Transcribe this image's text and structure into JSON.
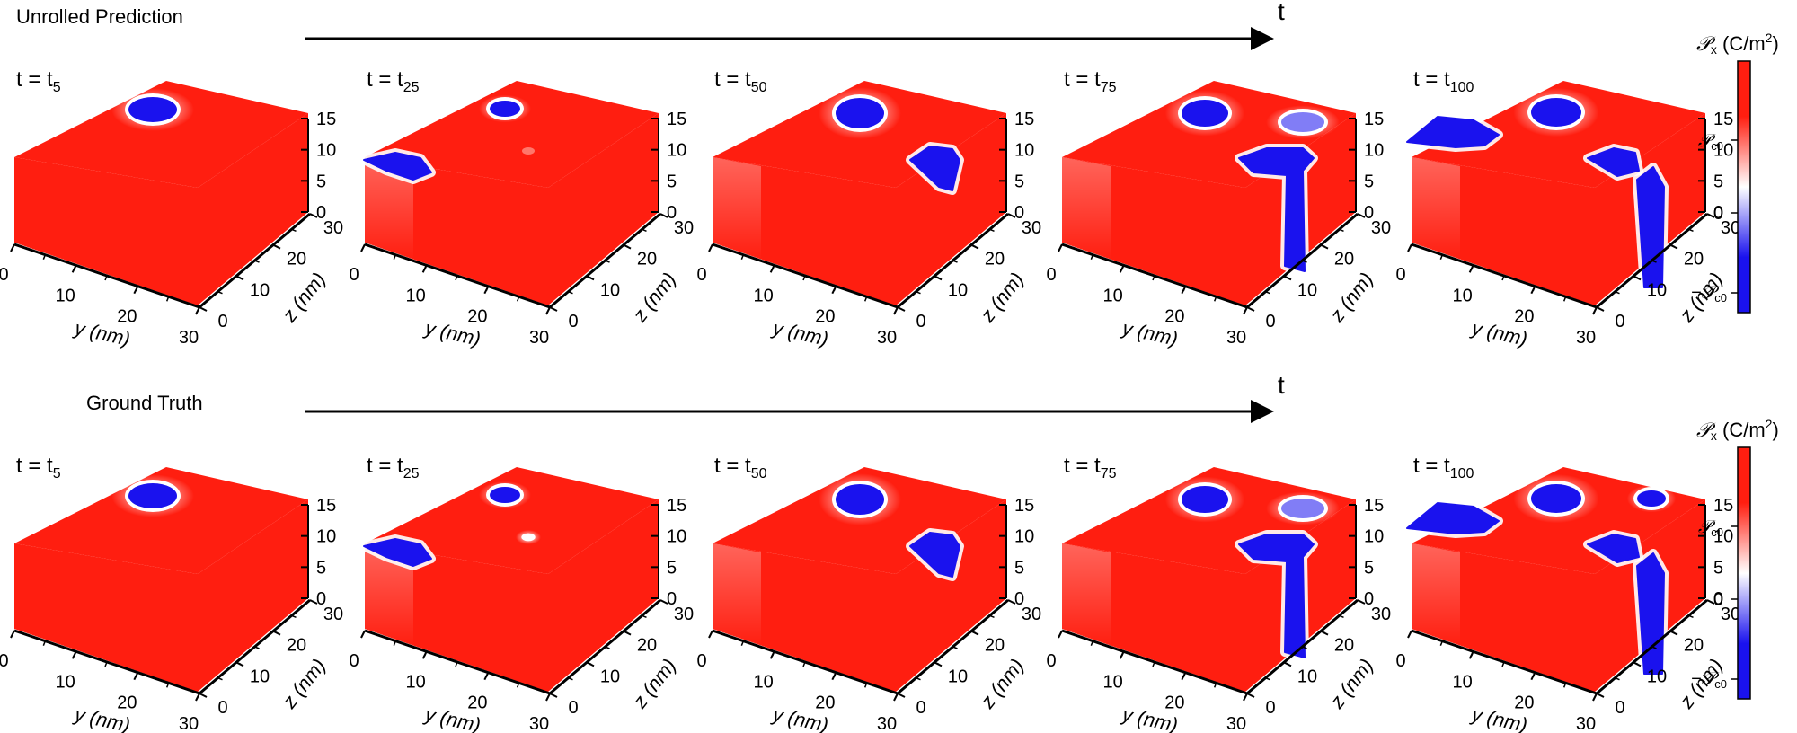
{
  "colors": {
    "positive": "#ff1e10",
    "domain_blue": "#1a12ee",
    "white": "#ffffff",
    "axis": "#000000"
  },
  "rows": [
    {
      "label": "Unrolled Prediction",
      "time_axis_label": "t"
    },
    {
      "label": "Ground Truth",
      "time_axis_label": "t"
    }
  ],
  "panels": [
    {
      "t_prefix": "t = t",
      "t_sub": "5"
    },
    {
      "t_prefix": "t = t",
      "t_sub": "25"
    },
    {
      "t_prefix": "t = t",
      "t_sub": "50"
    },
    {
      "t_prefix": "t = t",
      "t_sub": "75"
    },
    {
      "t_prefix": "t = t",
      "t_sub": "100"
    }
  ],
  "axes": {
    "y_label": "y (nm)",
    "z_label": "z (nm)",
    "y_ticks": [
      "0",
      "10",
      "20",
      "30"
    ],
    "z_ticks": [
      "0",
      "10",
      "20",
      "30"
    ],
    "x_ticks": [
      "0",
      "5",
      "10",
      "15"
    ]
  },
  "colorbar": {
    "title_symbol": "𝒫",
    "title_sub": "x",
    "title_unit_prefix": " (C/m",
    "title_unit_sup": "2",
    "title_unit_suffix": ")",
    "tick_top": {
      "symbol": "𝒫",
      "sub": "c0"
    },
    "tick_mid": "0",
    "tick_bottom": {
      "prefix": "−",
      "symbol": "𝒫",
      "sub": "c0"
    }
  }
}
